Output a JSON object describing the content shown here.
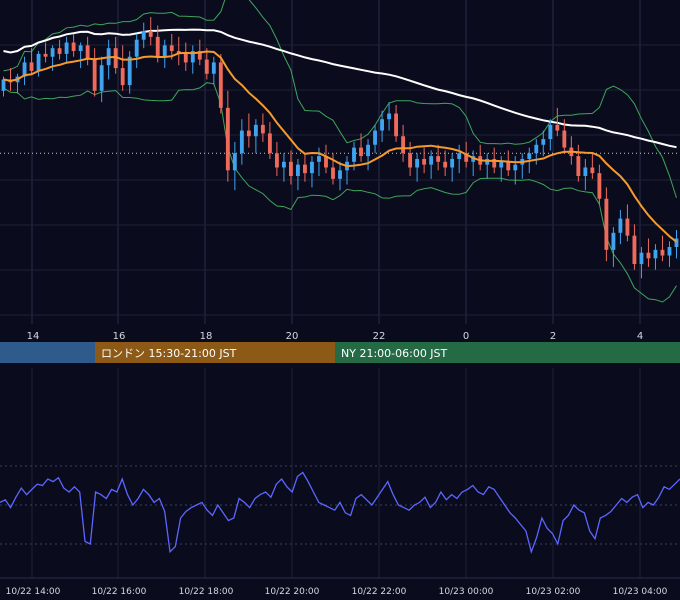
{
  "chart_data": [
    {
      "type": "candlestick",
      "role": "price",
      "x_tick_labels": [
        "14",
        "16",
        "18",
        "20",
        "22",
        "0",
        "2",
        "4"
      ],
      "y_range": [
        0,
        100
      ],
      "candles": [
        [
          80,
          85,
          78,
          84
        ],
        [
          84,
          88,
          80,
          83
        ],
        [
          83,
          86,
          79,
          85
        ],
        [
          85,
          92,
          82,
          90
        ],
        [
          90,
          95,
          86,
          87
        ],
        [
          87,
          94,
          85,
          93
        ],
        [
          93,
          97,
          90,
          92
        ],
        [
          92,
          96,
          87,
          95
        ],
        [
          95,
          98,
          91,
          93
        ],
        [
          93,
          99,
          90,
          97
        ],
        [
          97,
          100,
          92,
          94
        ],
        [
          94,
          97,
          88,
          96
        ],
        [
          96,
          99,
          89,
          91
        ],
        [
          91,
          95,
          78,
          80
        ],
        [
          80,
          92,
          76,
          89
        ],
        [
          89,
          98,
          84,
          95
        ],
        [
          95,
          99,
          86,
          88
        ],
        [
          88,
          96,
          80,
          82
        ],
        [
          82,
          94,
          79,
          92
        ],
        [
          92,
          100,
          88,
          98
        ],
        [
          98,
          104,
          95,
          101
        ],
        [
          101,
          106,
          96,
          99
        ],
        [
          99,
          103,
          90,
          92
        ],
        [
          92,
          98,
          88,
          96
        ],
        [
          96,
          100,
          91,
          94
        ],
        [
          94,
          99,
          89,
          93
        ],
        [
          93,
          97,
          87,
          90
        ],
        [
          90,
          96,
          86,
          94
        ],
        [
          94,
          98,
          89,
          91
        ],
        [
          91,
          95,
          84,
          86
        ],
        [
          86,
          92,
          82,
          90
        ],
        [
          90,
          93,
          72,
          74
        ],
        [
          74,
          80,
          48,
          52
        ],
        [
          52,
          62,
          45,
          58
        ],
        [
          58,
          70,
          54,
          66
        ],
        [
          66,
          72,
          60,
          64
        ],
        [
          64,
          70,
          58,
          68
        ],
        [
          68,
          72,
          62,
          65
        ],
        [
          65,
          69,
          56,
          58
        ],
        [
          58,
          62,
          50,
          53
        ],
        [
          53,
          58,
          48,
          55
        ],
        [
          55,
          59,
          47,
          50
        ],
        [
          50,
          56,
          45,
          54
        ],
        [
          54,
          58,
          48,
          51
        ],
        [
          51,
          57,
          46,
          55
        ],
        [
          55,
          60,
          50,
          57
        ],
        [
          57,
          61,
          51,
          53
        ],
        [
          53,
          58,
          47,
          49
        ],
        [
          49,
          55,
          45,
          52
        ],
        [
          52,
          57,
          47,
          55
        ],
        [
          55,
          62,
          52,
          60
        ],
        [
          60,
          65,
          55,
          57
        ],
        [
          57,
          63,
          52,
          61
        ],
        [
          61,
          68,
          58,
          66
        ],
        [
          66,
          73,
          62,
          70
        ],
        [
          70,
          76,
          66,
          72
        ],
        [
          72,
          75,
          62,
          64
        ],
        [
          64,
          68,
          55,
          58
        ],
        [
          58,
          62,
          50,
          53
        ],
        [
          53,
          58,
          48,
          56
        ],
        [
          56,
          60,
          51,
          54
        ],
        [
          54,
          59,
          49,
          57
        ],
        [
          57,
          61,
          52,
          55
        ],
        [
          55,
          59,
          50,
          53
        ],
        [
          53,
          58,
          48,
          56
        ],
        [
          56,
          61,
          51,
          58
        ],
        [
          58,
          62,
          53,
          55
        ],
        [
          55,
          59,
          50,
          57
        ],
        [
          57,
          61,
          52,
          54
        ],
        [
          54,
          58,
          49,
          56
        ],
        [
          56,
          60,
          51,
          53
        ],
        [
          53,
          57,
          48,
          55
        ],
        [
          55,
          59,
          50,
          52
        ],
        [
          52,
          57,
          47,
          54
        ],
        [
          54,
          58,
          49,
          56
        ],
        [
          56,
          60,
          51,
          58
        ],
        [
          58,
          63,
          54,
          61
        ],
        [
          61,
          66,
          57,
          63
        ],
        [
          63,
          70,
          59,
          68
        ],
        [
          68,
          74,
          64,
          66
        ],
        [
          66,
          70,
          58,
          60
        ],
        [
          60,
          64,
          54,
          57
        ],
        [
          57,
          61,
          48,
          50
        ],
        [
          50,
          56,
          45,
          53
        ],
        [
          53,
          58,
          49,
          51
        ],
        [
          51,
          54,
          40,
          42
        ],
        [
          42,
          46,
          20,
          24
        ],
        [
          24,
          32,
          18,
          30
        ],
        [
          30,
          38,
          26,
          35
        ],
        [
          35,
          40,
          27,
          29
        ],
        [
          29,
          33,
          17,
          19
        ],
        [
          19,
          25,
          14,
          23
        ],
        [
          23,
          28,
          18,
          21
        ],
        [
          21,
          26,
          17,
          24
        ],
        [
          24,
          29,
          20,
          22
        ],
        [
          22,
          27,
          18,
          25
        ],
        [
          25,
          31,
          21,
          28
        ]
      ],
      "overlays": [
        {
          "kind": "moving-average",
          "color": "#f59a2c"
        },
        {
          "kind": "moving-average-long",
          "color": "#ffffff"
        },
        {
          "kind": "bollinger-bands",
          "color": "#3fa55a"
        }
      ],
      "reference_line": {
        "style": "dotted",
        "color": "#c8c8c8",
        "value": 58
      }
    },
    {
      "type": "line",
      "role": "oscillator",
      "color": "#5b66ff",
      "x_tick_labels": [
        "10/22 14:00",
        "10/22 16:00",
        "10/22 18:00",
        "10/22 20:00",
        "10/22 22:00",
        "10/23 00:00",
        "10/23 02:00",
        "10/23 04:00"
      ],
      "y_range": [
        0,
        100
      ],
      "values": [
        52,
        54,
        48,
        56,
        63,
        58,
        62,
        66,
        65,
        70,
        68,
        71,
        63,
        60,
        64,
        60,
        22,
        20,
        60,
        58,
        55,
        62,
        60,
        70,
        58,
        50,
        55,
        62,
        58,
        52,
        55,
        45,
        14,
        18,
        40,
        45,
        48,
        50,
        52,
        46,
        42,
        50,
        44,
        38,
        40,
        55,
        52,
        48,
        55,
        58,
        60,
        56,
        66,
        70,
        64,
        60,
        72,
        75,
        68,
        60,
        52,
        50,
        48,
        46,
        52,
        44,
        42,
        55,
        58,
        54,
        50,
        56,
        62,
        68,
        58,
        50,
        48,
        46,
        50,
        52,
        56,
        48,
        52,
        60,
        54,
        58,
        55,
        60,
        62,
        65,
        60,
        58,
        64,
        62,
        56,
        50,
        44,
        40,
        35,
        30,
        14,
        25,
        40,
        32,
        28,
        20,
        38,
        42,
        50,
        46,
        44,
        30,
        24,
        40,
        42,
        45,
        50,
        55,
        52,
        56,
        58,
        48,
        52,
        50,
        56,
        64,
        62,
        66,
        70
      ],
      "grid_levels": [
        20,
        50,
        80
      ]
    }
  ],
  "sessions": [
    {
      "label": "",
      "color": "#2f5a8c"
    },
    {
      "label": "ロンドン 15:30-21:00 JST",
      "color": "#8c5a16"
    },
    {
      "label": "NY 21:00-06:00 JST",
      "color": "#246a45"
    }
  ],
  "colors": {
    "background": "#0b0b1e",
    "up_candle": "#3fa3f0",
    "down_candle": "#ee6a5a",
    "grid": "#2a2e4a"
  }
}
